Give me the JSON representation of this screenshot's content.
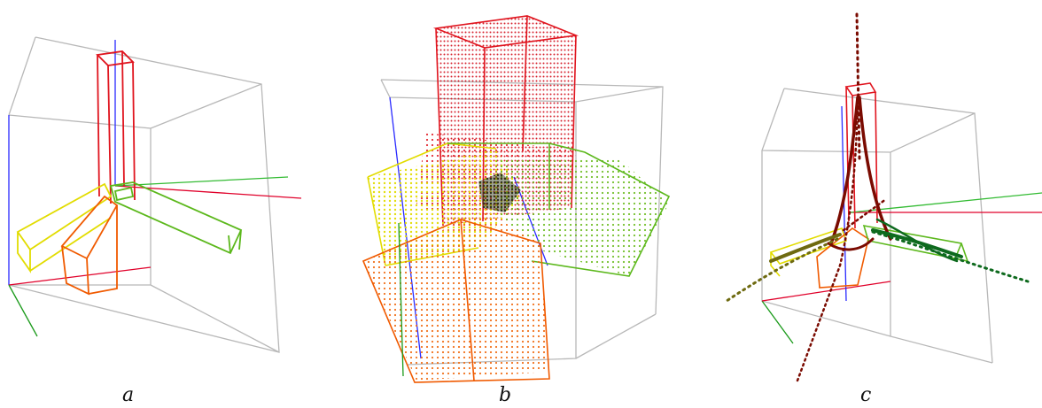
{
  "panels": [
    {
      "label": "a"
    },
    {
      "label": "b"
    },
    {
      "label": "c"
    }
  ],
  "colors": {
    "bounding_box": "#b8b8b8",
    "axis_x": "#e0002a",
    "axis_y": "#1a9a1a",
    "axis_z": "#2a2aff",
    "red_block": "#e0141e",
    "yellow_block": "#e6e000",
    "orange_block": "#f06000",
    "green_block": "#5cb81c",
    "dark_red_points": "#7a0a00",
    "dark_green_points": "#0e6a1e",
    "olive_points": "#7a7a10"
  }
}
